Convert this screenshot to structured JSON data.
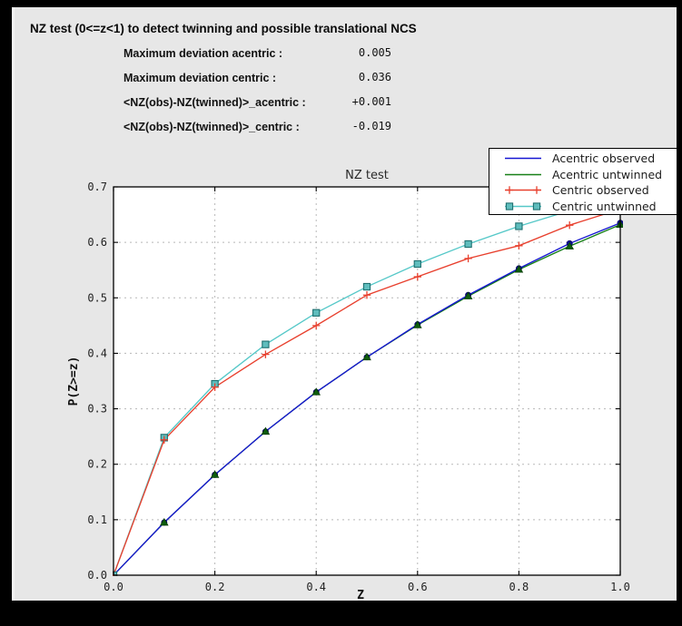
{
  "window": {
    "title": "NZ test (0<=z<1) to detect twinning and possible translational NCS",
    "stats": [
      {
        "label": "Maximum deviation acentric :",
        "value": "0.005"
      },
      {
        "label": "Maximum deviation centric :",
        "value": "0.036"
      },
      {
        "label": "<NZ(obs)-NZ(twinned)>_acentric :",
        "value": "+0.001"
      },
      {
        "label": "<NZ(obs)-NZ(twinned)>_centric :",
        "value": "-0.019"
      }
    ]
  },
  "chart_data": {
    "type": "line",
    "title": "NZ test",
    "xlabel": "Z",
    "ylabel": "P(Z>=z)",
    "xlim": [
      0.0,
      1.0
    ],
    "ylim": [
      0.0,
      0.7
    ],
    "xticks": [
      0.0,
      0.2,
      0.4,
      0.6,
      0.8,
      1.0
    ],
    "yticks": [
      0.0,
      0.1,
      0.2,
      0.3,
      0.4,
      0.5,
      0.6,
      0.7
    ],
    "grid": true,
    "grid_style": "dotted",
    "legend_position": "top-right",
    "background": "#ffffff",
    "figure_background": "#e7e7e7",
    "x": [
      0.0,
      0.1,
      0.2,
      0.3,
      0.4,
      0.5,
      0.6,
      0.7,
      0.8,
      0.9,
      1.0
    ],
    "series": [
      {
        "name": "Acentric observed",
        "color": "#1616d2",
        "marker": "circle",
        "marker_color": "#0c0c9e",
        "marker_edge": "#06065a",
        "values": [
          0.0,
          0.095,
          0.181,
          0.259,
          0.33,
          0.393,
          0.452,
          0.505,
          0.553,
          0.598,
          0.635
        ]
      },
      {
        "name": "Acentric untwinned",
        "color": "#178017",
        "marker": "triangle",
        "marker_color": "#0d5c0d",
        "marker_edge": "#073807",
        "values": [
          0.0,
          0.095,
          0.181,
          0.259,
          0.33,
          0.393,
          0.451,
          0.503,
          0.551,
          0.593,
          0.632
        ]
      },
      {
        "name": "Centric observed",
        "color": "#e8402e",
        "marker": "plus",
        "marker_color": "#e8402e",
        "marker_edge": "#e8402e",
        "values": [
          0.0,
          0.244,
          0.339,
          0.398,
          0.45,
          0.505,
          0.538,
          0.571,
          0.594,
          0.631,
          0.66
        ]
      },
      {
        "name": "Centric untwinned",
        "color": "#55c8c8",
        "marker": "square",
        "marker_color": "#5fbdbd",
        "marker_edge": "#1e6f6f",
        "values": [
          0.0,
          0.248,
          0.345,
          0.416,
          0.473,
          0.52,
          0.561,
          0.597,
          0.629,
          0.657,
          0.683
        ]
      }
    ]
  },
  "colors": {
    "frame": "#000000",
    "panel": "#e7e7e7",
    "plot_background": "#ffffff",
    "grid": "#b8b8b8",
    "spine": "#000000"
  }
}
